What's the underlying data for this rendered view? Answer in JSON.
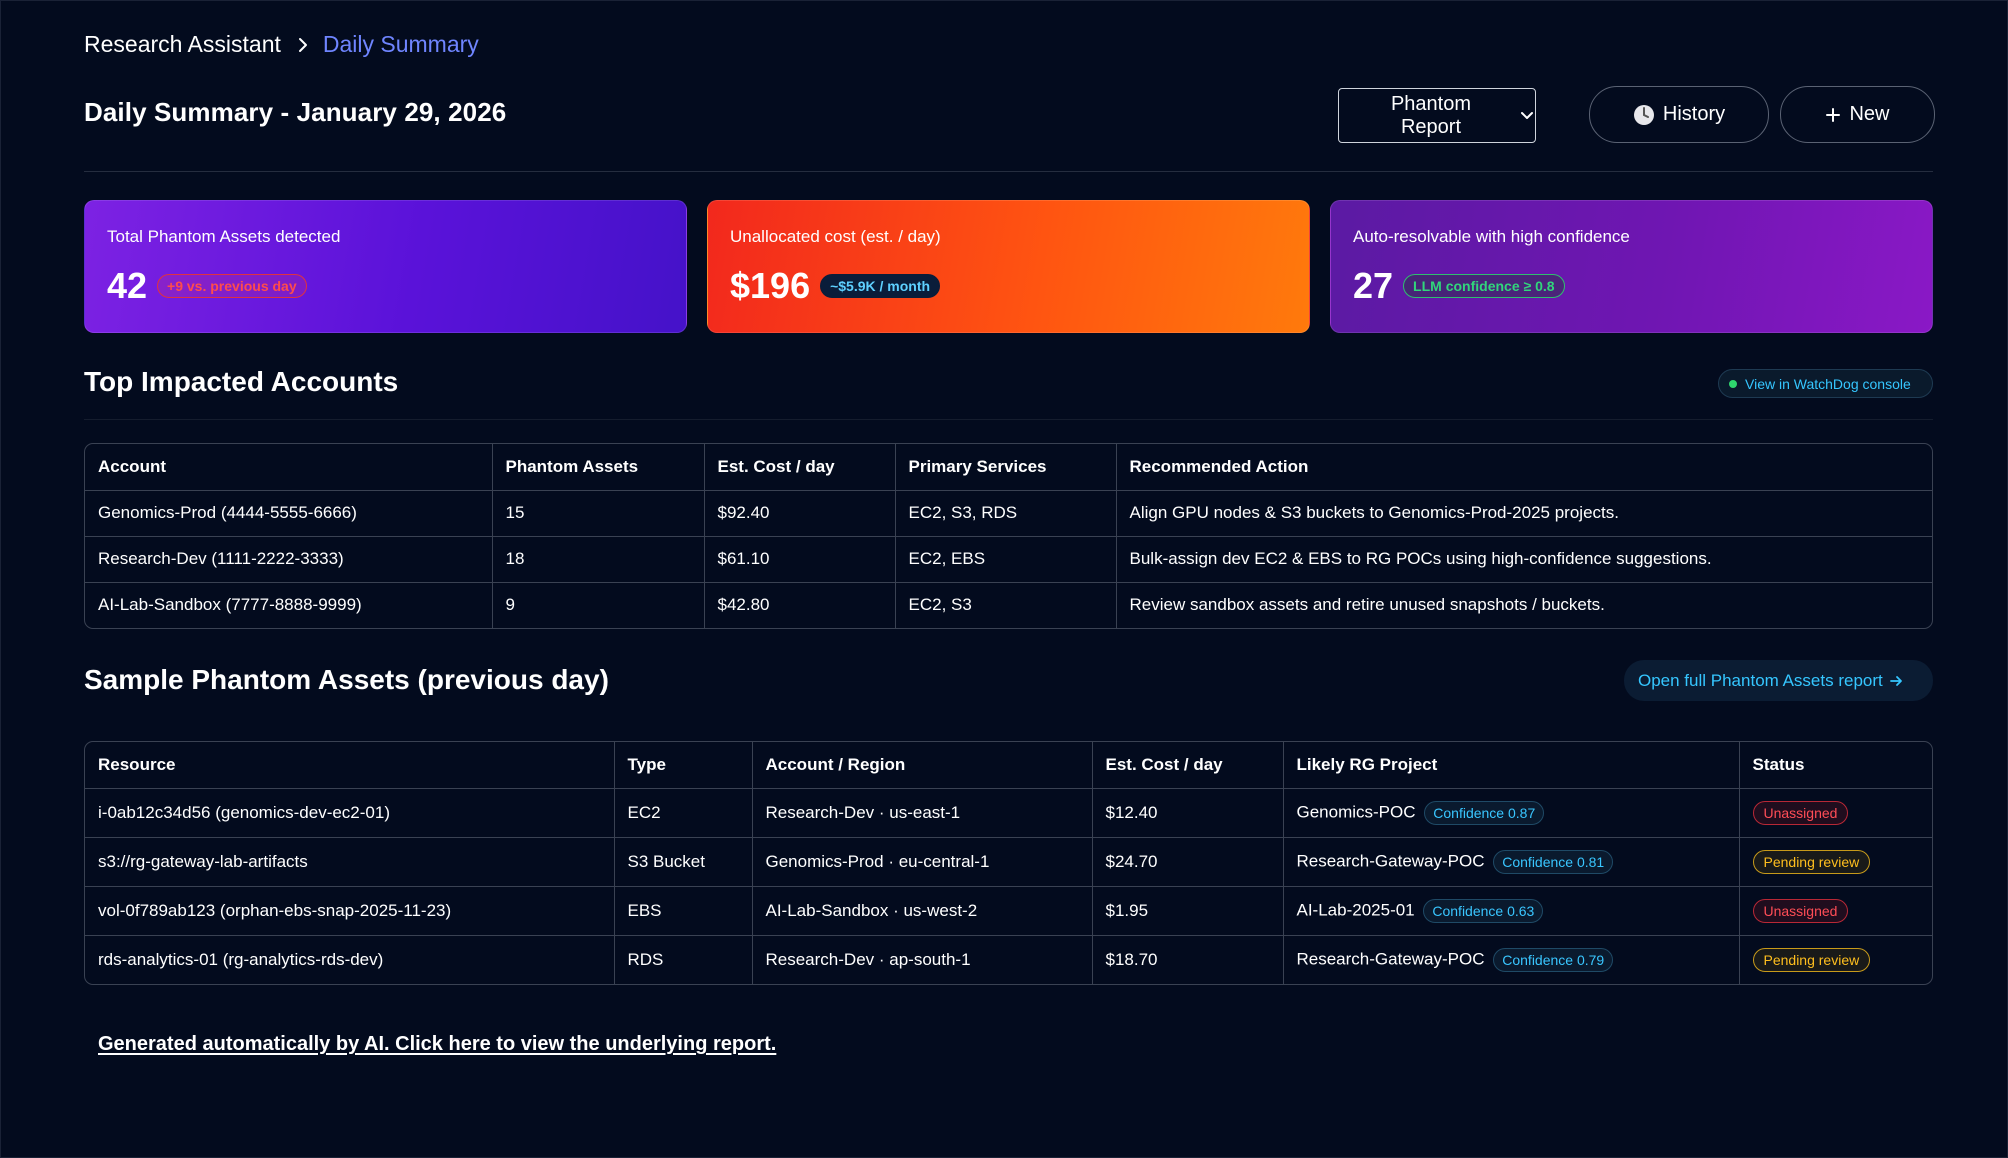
{
  "breadcrumb": {
    "root": "Research Assistant",
    "current": "Daily Summary"
  },
  "header": {
    "title": "Daily Summary - January 29, 2026",
    "report_select": "Phantom Report",
    "history_label": "History",
    "new_label": "New"
  },
  "cards": [
    {
      "label": "Total Phantom Assets detected",
      "value": "42",
      "pill": "+9 vs. previous day"
    },
    {
      "label": "Unallocated cost (est. / day)",
      "value": "$196",
      "pill": "~$5.9K / month"
    },
    {
      "label": "Auto-resolvable with high confidence",
      "value": "27",
      "pill": "LLM confidence ≥ 0.8"
    }
  ],
  "accounts": {
    "title": "Top Impacted Accounts",
    "console_link": "View in WatchDog console",
    "columns": [
      "Account",
      "Phantom Assets",
      "Est. Cost / day",
      "Primary Services",
      "Recommended Action"
    ],
    "rows": [
      [
        "Genomics-Prod (4444-5555-6666)",
        "15",
        "$92.40",
        "EC2, S3, RDS",
        "Align GPU nodes & S3 buckets to Genomics-Prod-2025 projects."
      ],
      [
        "Research-Dev (1111-2222-3333)",
        "18",
        "$61.10",
        "EC2, EBS",
        "Bulk-assign dev EC2 & EBS to RG POCs using high-confidence suggestions."
      ],
      [
        "AI-Lab-Sandbox (7777-8888-9999)",
        "9",
        "$42.80",
        "EC2, S3",
        "Review sandbox assets and retire unused snapshots / buckets."
      ]
    ]
  },
  "assets": {
    "title": "Sample Phantom Assets (previous day)",
    "report_link": "Open full Phantom Assets report",
    "columns": [
      "Resource",
      "Type",
      "Account / Region",
      "Est. Cost / day",
      "Likely RG Project",
      "Status"
    ],
    "rows": [
      {
        "resource": "i-0ab12c34d56 (genomics-dev-ec2-01)",
        "type": "EC2",
        "region": "Research-Dev · us-east-1",
        "cost": "$12.40",
        "project": "Genomics-POC",
        "confidence": "Confidence 0.87",
        "status": "Unassigned",
        "status_kind": "unassigned"
      },
      {
        "resource": "s3://rg-gateway-lab-artifacts",
        "type": "S3 Bucket",
        "region": "Genomics-Prod · eu-central-1",
        "cost": "$24.70",
        "project": "Research-Gateway-POC",
        "confidence": "Confidence 0.81",
        "status": "Pending review",
        "status_kind": "pending"
      },
      {
        "resource": "vol-0f789ab123 (orphan-ebs-snap-2025-11-23)",
        "type": "EBS",
        "region": "AI-Lab-Sandbox · us-west-2",
        "cost": "$1.95",
        "project": "AI-Lab-2025-01",
        "confidence": "Confidence 0.63",
        "status": "Unassigned",
        "status_kind": "unassigned"
      },
      {
        "resource": "rds-analytics-01 (rg-analytics-rds-dev)",
        "type": "RDS",
        "region": "Research-Dev · ap-south-1",
        "cost": "$18.70",
        "project": "Research-Gateway-POC",
        "confidence": "Confidence 0.79",
        "status": "Pending review",
        "status_kind": "pending"
      }
    ]
  },
  "footer": {
    "link": "Generated automatically by AI. Click here to view the underlying report."
  },
  "colors": {
    "background": "#030b1e",
    "accent_link": "#35c6ff",
    "breadcrumb_active": "#6f85ff"
  }
}
